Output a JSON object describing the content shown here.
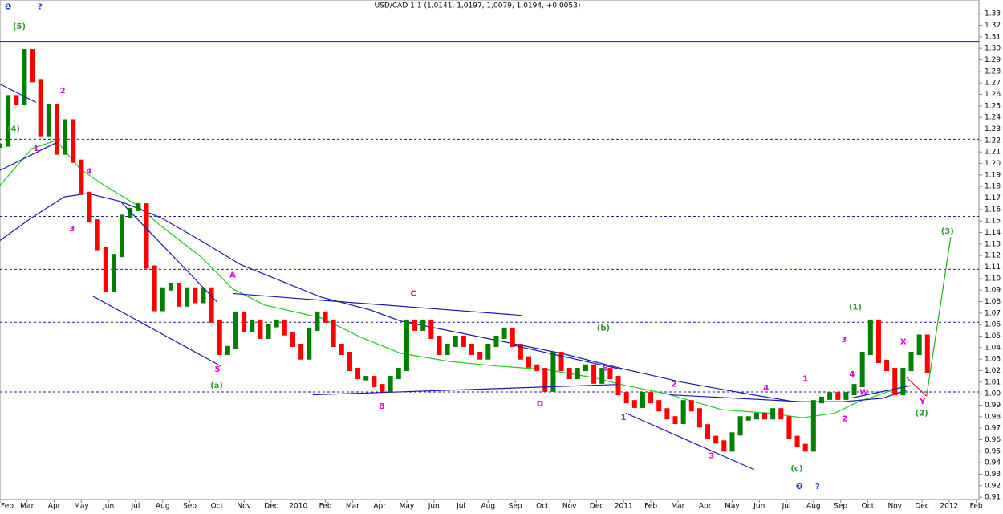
{
  "chart_data": {
    "type": "line",
    "title": "USD/CAD 1:1 (1,0141, 1,0197, 1,0079, 1,0194, +0,0053)",
    "xlim": [
      0,
      36.1
    ],
    "ylim": [
      0.908,
      1.342
    ],
    "xticks": [
      {
        "value": 0,
        "label": "Feb"
      },
      {
        "value": 1,
        "label": "Mar"
      },
      {
        "value": 2,
        "label": "Apr"
      },
      {
        "value": 3,
        "label": "May"
      },
      {
        "value": 4,
        "label": "Jun"
      },
      {
        "value": 5,
        "label": "Jul"
      },
      {
        "value": 6,
        "label": "Aug"
      },
      {
        "value": 7,
        "label": "Sep"
      },
      {
        "value": 8,
        "label": "Oct"
      },
      {
        "value": 9,
        "label": "Nov"
      },
      {
        "value": 10,
        "label": "Dec"
      },
      {
        "value": 11,
        "label": "2010"
      },
      {
        "value": 12,
        "label": "Feb"
      },
      {
        "value": 13,
        "label": "Mar"
      },
      {
        "value": 14,
        "label": "Apr"
      },
      {
        "value": 15,
        "label": "May"
      },
      {
        "value": 16,
        "label": "Jun"
      },
      {
        "value": 17,
        "label": "Jul"
      },
      {
        "value": 18,
        "label": "Aug"
      },
      {
        "value": 19,
        "label": "Sep"
      },
      {
        "value": 20,
        "label": "Oct"
      },
      {
        "value": 21,
        "label": "Nov"
      },
      {
        "value": 22,
        "label": "Dec"
      },
      {
        "value": 23,
        "label": "2011"
      },
      {
        "value": 24,
        "label": "Feb"
      },
      {
        "value": 25,
        "label": "Mar"
      },
      {
        "value": 26,
        "label": "Apr"
      },
      {
        "value": 27,
        "label": "May"
      },
      {
        "value": 28,
        "label": "Jun"
      },
      {
        "value": 29,
        "label": "Jul"
      },
      {
        "value": 30,
        "label": "Aug"
      },
      {
        "value": 31,
        "label": "Sep"
      },
      {
        "value": 32,
        "label": "Oct"
      },
      {
        "value": 33,
        "label": "Nov"
      },
      {
        "value": 34,
        "label": "Dec"
      },
      {
        "value": 35,
        "label": "2012"
      },
      {
        "value": 36,
        "label": "Feb"
      }
    ],
    "yticks": [
      0.91,
      0.92,
      0.93,
      0.94,
      0.95,
      0.96,
      0.97,
      0.98,
      0.99,
      {
        "value": 1,
        "label": "1.00"
      },
      1.01,
      1.02,
      1.03,
      1.04,
      1.05,
      1.06,
      1.07,
      1.08,
      1.09,
      {
        "value": 1.1,
        "label": "1.10"
      },
      1.11,
      1.12,
      1.13,
      1.14,
      1.15,
      1.16,
      1.17,
      1.18,
      1.19,
      {
        "value": 1.2,
        "label": "1.20"
      },
      1.21,
      1.22,
      1.23,
      1.24,
      1.25,
      1.26,
      1.27,
      1.28,
      1.29,
      {
        "value": 1.3,
        "label": "1.30"
      },
      1.31,
      1.32,
      1.33
    ],
    "price": {
      "up_color": "#008000",
      "down_color": "#ff0000",
      "x": [
        0,
        0.3,
        0.6,
        0.9,
        1.2,
        1.5,
        1.8,
        2.1,
        2.4,
        2.7,
        3,
        3.3,
        3.6,
        3.9,
        4.2,
        4.5,
        4.8,
        5.1,
        5.4,
        5.7,
        6,
        6.3,
        6.6,
        6.9,
        7.2,
        7.5,
        7.8,
        8.1,
        8.4,
        8.7,
        9,
        9.3,
        9.6,
        9.9,
        10.2,
        10.5,
        10.8,
        11.1,
        11.4,
        11.7,
        12,
        12.3,
        12.6,
        12.9,
        13.2,
        13.5,
        13.8,
        14.1,
        14.4,
        14.7,
        15,
        15.3,
        15.6,
        15.9,
        16.2,
        16.5,
        16.8,
        17.1,
        17.4,
        17.7,
        18,
        18.3,
        18.6,
        18.9,
        19.2,
        19.5,
        19.8,
        20.1,
        20.4,
        20.7,
        21,
        21.3,
        21.6,
        21.9,
        22.2,
        22.5,
        22.8,
        23.1,
        23.4,
        23.7,
        24,
        24.3,
        24.6,
        24.9,
        25.2,
        25.5,
        25.8,
        26.1,
        26.4,
        26.7,
        27,
        27.3,
        27.6,
        27.9,
        28.2,
        28.5,
        28.8,
        29.1,
        29.4,
        29.7,
        30,
        30.3,
        30.6,
        30.9,
        31.2,
        31.5,
        31.8,
        32.1,
        32.4,
        32.7,
        33,
        33.3,
        33.6,
        33.9,
        34.2
      ],
      "values": [
        1.216,
        1.258,
        1.252,
        1.298,
        1.272,
        1.225,
        1.25,
        1.209,
        1.237,
        1.202,
        1.174,
        1.15,
        1.126,
        1.09,
        1.12,
        1.154,
        1.16,
        1.164,
        1.11,
        1.073,
        1.091,
        1.095,
        1.077,
        1.091,
        1.08,
        1.091,
        1.063,
        1.035,
        1.04,
        1.07,
        1.055,
        1.063,
        1.049,
        1.059,
        1.063,
        1.052,
        1.042,
        1.031,
        1.056,
        1.07,
        1.063,
        1.042,
        1.035,
        1.021,
        1.014,
        1.014,
        1.007,
        1.003,
        1.014,
        1.021,
        1.063,
        1.056,
        1.063,
        1.049,
        1.035,
        1.042,
        1.049,
        1.042,
        1.035,
        1.031,
        1.042,
        1.049,
        1.056,
        1.042,
        1.031,
        1.024,
        1.021,
        1.003,
        1.035,
        1.021,
        1.014,
        1.021,
        1.024,
        1.01,
        1.021,
        1.014,
        1,
        0.993,
        0.989,
        1,
        0.993,
        0.986,
        0.979,
        0.975,
        0.993,
        0.986,
        0.972,
        0.962,
        0.958,
        0.951,
        0.965,
        0.979,
        0.979,
        0.982,
        0.979,
        0.986,
        0.979,
        0.962,
        0.955,
        0.951,
        0.993,
        0.996,
        1,
        0.996,
        1,
        1.007,
        1.035,
        1.063,
        1.028,
        1.021,
        1,
        1.021,
        1.035,
        1.05,
        1.019
      ]
    },
    "series": [
      {
        "color": "#22cc22",
        "x": [
          0,
          1.18,
          2.07,
          2.96,
          3.85,
          5.03,
          5.92,
          7.4,
          8.58,
          9.76,
          11.83,
          13.31,
          14.79,
          16.57,
          18.34,
          20.12,
          21.89,
          23.08,
          24.56,
          26.63,
          28.4,
          29.59,
          30.77,
          31.66,
          32.54,
          33.43
        ],
        "values": [
          1.181,
          1.213,
          1.22,
          1.195,
          1.181,
          1.164,
          1.146,
          1.119,
          1.091,
          1.077,
          1.066,
          1.049,
          1.035,
          1.028,
          1.024,
          1.021,
          1.014,
          1.007,
          1,
          0.986,
          0.983,
          0.979,
          0.983,
          0.993,
          1,
          1.007
        ]
      },
      {
        "color": "#1a1aa8",
        "x": [
          0,
          1.18,
          2.37,
          3.25,
          4.44,
          5.92,
          7.4,
          8.88,
          11.83,
          13.61,
          14.79,
          17.75,
          20.71,
          23.08,
          25.15,
          27.51,
          29.29,
          31.07,
          32.54,
          33.43
        ],
        "values": [
          1.133,
          1.153,
          1.171,
          1.174,
          1.167,
          1.153,
          1.133,
          1.112,
          1.084,
          1.073,
          1.063,
          1.049,
          1.035,
          1.021,
          1.01,
          1,
          0.993,
          0.993,
          0.996,
          1.003
        ]
      }
    ],
    "hlines": [
      {
        "value": 1.306,
        "style": "solid"
      },
      {
        "value": 1.221,
        "style": "dashed"
      },
      {
        "value": 1.154,
        "style": "dashed"
      },
      {
        "value": 1.108,
        "style": "dashed"
      },
      {
        "value": 1.062,
        "style": "dashed"
      },
      {
        "value": 1.0015,
        "style": "dashed"
      }
    ],
    "hline_color": "#1a1aa8",
    "trendlines": [
      {
        "x": [
          0,
          1.33
        ],
        "y": [
          1.269,
          1.253
        ],
        "color": "#1a1aa8"
      },
      {
        "x": [
          0,
          2.07
        ],
        "y": [
          1.194,
          1.218
        ],
        "color": "#1a1aa8"
      },
      {
        "x": [
          3.4,
          8.14
        ],
        "y": [
          1.085,
          1.024
        ],
        "color": "#1a1aa8"
      },
      {
        "x": [
          4.44,
          7.99
        ],
        "y": [
          1.167,
          1.08
        ],
        "color": "#1a1aa8"
      },
      {
        "x": [
          8.58,
          19.23
        ],
        "y": [
          1.087,
          1.068
        ],
        "color": "#1a1aa8"
      },
      {
        "x": [
          11.54,
          22.78
        ],
        "y": [
          0.999,
          1.008
        ],
        "color": "#1a1aa8"
      },
      {
        "x": [
          18.93,
          22.93
        ],
        "y": [
          1.042,
          1.021
        ],
        "color": "#1a1aa8"
      },
      {
        "x": [
          23.08,
          27.81
        ],
        "y": [
          0.983,
          0.934
        ],
        "color": "#1a1aa8"
      },
      {
        "x": [
          24.7,
          29.59
        ],
        "y": [
          0.999,
          0.993
        ],
        "color": "#1a1aa8"
      },
      {
        "x": [
          31.36,
          33.58
        ],
        "y": [
          0.996,
          1.007
        ],
        "color": "#1a1aa8"
      },
      {
        "x": [
          33.43,
          34.17
        ],
        "y": [
          1.014,
          0.998
        ],
        "color": "#e02020"
      },
      {
        "x": [
          34.17,
          35.06
        ],
        "y": [
          0.998,
          1.136
        ],
        "color": "#22aa22"
      }
    ],
    "annotations": [
      {
        "text": "❶",
        "x": 0.3,
        "y": 1.336,
        "color": "#1a3ccc"
      },
      {
        "text": "?",
        "x": 1.48,
        "y": 1.336,
        "color": "#1a3ccc"
      },
      {
        "text": "(5)",
        "x": 0.71,
        "y": 1.319,
        "color": "#2e9a2e"
      },
      {
        "text": "(4)",
        "x": 0.5,
        "y": 1.23,
        "color": "#2e9a2e"
      },
      {
        "text": "1",
        "x": 1.33,
        "y": 1.213,
        "color": "#e000e0"
      },
      {
        "text": "2",
        "x": 2.31,
        "y": 1.263,
        "color": "#e000e0"
      },
      {
        "text": "4",
        "x": 3.28,
        "y": 1.193,
        "color": "#e000e0"
      },
      {
        "text": "3",
        "x": 2.66,
        "y": 1.143,
        "color": "#e000e0"
      },
      {
        "text": "5",
        "x": 8.02,
        "y": 1.021,
        "color": "#e000e0"
      },
      {
        "text": "(a)",
        "x": 7.99,
        "y": 1.007,
        "color": "#2e9a2e"
      },
      {
        "text": "A",
        "x": 8.58,
        "y": 1.103,
        "color": "#e000e0"
      },
      {
        "text": "B",
        "x": 14.08,
        "y": 0.989,
        "color": "#e000e0"
      },
      {
        "text": "C",
        "x": 15.24,
        "y": 1.087,
        "color": "#e000e0"
      },
      {
        "text": "D",
        "x": 19.91,
        "y": 0.991,
        "color": "#e000e0"
      },
      {
        "text": "E",
        "x": 22.31,
        "y": 1.022,
        "color": "#e000e0"
      },
      {
        "text": "(b)",
        "x": 22.25,
        "y": 1.057,
        "color": "#2e9a2e"
      },
      {
        "text": "1",
        "x": 22.99,
        "y": 0.979,
        "color": "#e000e0"
      },
      {
        "text": "2",
        "x": 24.85,
        "y": 1.008,
        "color": "#e000e0"
      },
      {
        "text": "3",
        "x": 26.24,
        "y": 0.946,
        "color": "#e000e0"
      },
      {
        "text": "4",
        "x": 28.25,
        "y": 1.005,
        "color": "#e000e0"
      },
      {
        "text": "(c)",
        "x": 29.38,
        "y": 0.935,
        "color": "#2e9a2e"
      },
      {
        "text": "❷",
        "x": 29.47,
        "y": 0.919,
        "color": "#1a3ccc"
      },
      {
        "text": "?",
        "x": 30.15,
        "y": 0.919,
        "color": "#1a3ccc"
      },
      {
        "text": "1",
        "x": 29.7,
        "y": 1.013,
        "color": "#e000e0"
      },
      {
        "text": "2",
        "x": 31.15,
        "y": 0.978,
        "color": "#e000e0"
      },
      {
        "text": "3",
        "x": 31.12,
        "y": 1.047,
        "color": "#e000e0"
      },
      {
        "text": "4",
        "x": 31.42,
        "y": 1.017,
        "color": "#e000e0"
      },
      {
        "text": "W",
        "x": 31.86,
        "y": 1.001,
        "color": "#e000e0"
      },
      {
        "text": "(1)",
        "x": 31.54,
        "y": 1.075,
        "color": "#2e9a2e"
      },
      {
        "text": "X",
        "x": 33.31,
        "y": 1.045,
        "color": "#e000e0"
      },
      {
        "text": "Y",
        "x": 34.02,
        "y": 0.993,
        "color": "#e000e0"
      },
      {
        "text": "(2)",
        "x": 33.99,
        "y": 0.983,
        "color": "#2e9a2e"
      },
      {
        "text": "(3)",
        "x": 34.94,
        "y": 1.141,
        "color": "#2e9a2e"
      }
    ]
  }
}
